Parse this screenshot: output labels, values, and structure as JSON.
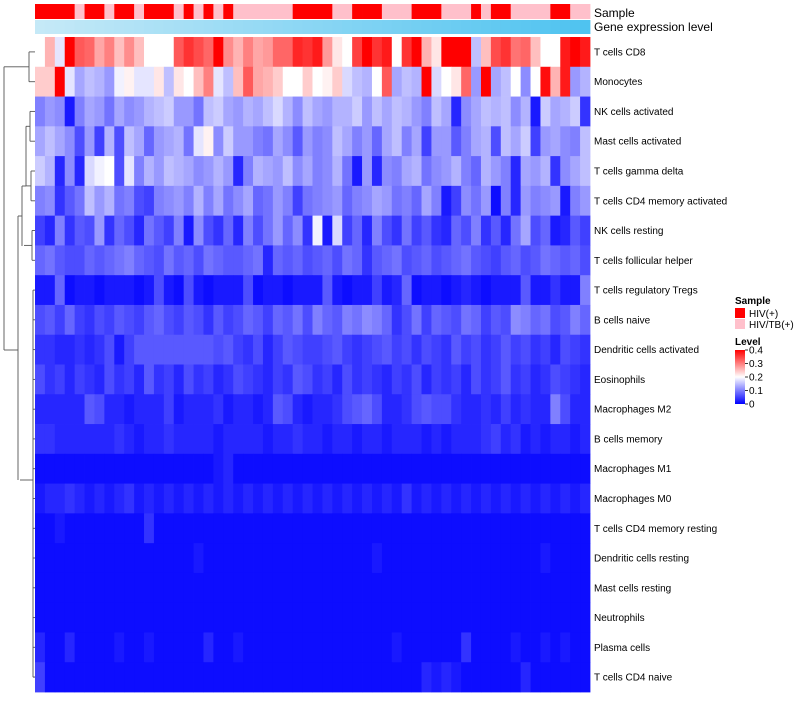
{
  "chart_data": {
    "type": "heatmap",
    "title": "",
    "annotation_labels": [
      "Sample",
      "Gene expression level"
    ],
    "rows": [
      "T cells CD8",
      "Monocytes",
      "NK cells activated",
      "Mast cells activated",
      "T cells gamma delta",
      "T cells CD4 memory activated",
      "NK cells resting",
      "T cells follicular helper",
      "T cells regulatory  Tregs",
      "B cells naive",
      "Dendritic cells activated",
      "Eosinophils",
      "Macrophages M2",
      "B cells memory",
      "Macrophages M1",
      "Macrophages M0",
      "T cells CD4 memory resting",
      "Dendritic cells resting",
      "Mast cells resting",
      "Neutrophils",
      "Plasma cells",
      "T cells CD4 naive"
    ],
    "n_columns": 56,
    "sample_groups": [
      0,
      0,
      0,
      0,
      1,
      0,
      0,
      1,
      0,
      0,
      1,
      0,
      0,
      0,
      1,
      0,
      1,
      0,
      1,
      0,
      1,
      1,
      1,
      1,
      1,
      1,
      0,
      0,
      0,
      0,
      1,
      1,
      0,
      0,
      0,
      1,
      1,
      1,
      0,
      0,
      0,
      1,
      1,
      1,
      0,
      1,
      0,
      0,
      1,
      1,
      1,
      1,
      0,
      0,
      1,
      1
    ],
    "values": [
      [
        0.2,
        0.26,
        0.18,
        0.4,
        0.33,
        0.32,
        0.27,
        0.3,
        0.25,
        0.29,
        0.25,
        0.2,
        0.2,
        0.2,
        0.33,
        0.36,
        0.34,
        0.32,
        0.4,
        0.29,
        0.26,
        0.3,
        0.27,
        0.28,
        0.32,
        0.32,
        0.37,
        0.36,
        0.38,
        0.28,
        0.22,
        0.2,
        0.35,
        0.4,
        0.36,
        0.38,
        0.2,
        0.36,
        0.4,
        0.26,
        0.22,
        0.4,
        0.4,
        0.4,
        0.15,
        0.25,
        0.34,
        0.36,
        0.31,
        0.32,
        0.25,
        0.2,
        0.2,
        0.38,
        0.42,
        0.38
      ],
      [
        0.24,
        0.24,
        0.42,
        0.18,
        0.13,
        0.15,
        0.14,
        0.12,
        0.19,
        0.21,
        0.18,
        0.18,
        0.22,
        0.15,
        0.22,
        0.2,
        0.25,
        0.3,
        0.18,
        0.15,
        0.25,
        0.33,
        0.27,
        0.26,
        0.24,
        0.2,
        0.2,
        0.24,
        0.2,
        0.21,
        0.24,
        0.17,
        0.15,
        0.14,
        0.2,
        0.33,
        0.13,
        0.15,
        0.14,
        0.4,
        0.17,
        0.2,
        0.22,
        0.32,
        0.12,
        0.43,
        0.13,
        0.15,
        0.2,
        0.11,
        0.2,
        0.39,
        0.26,
        0.38,
        0.12,
        0.14
      ],
      [
        0.1,
        0.12,
        0.11,
        0.02,
        0.1,
        0.13,
        0.12,
        0.09,
        0.13,
        0.11,
        0.12,
        0.14,
        0.15,
        0.16,
        0.12,
        0.12,
        0.09,
        0.15,
        0.16,
        0.13,
        0.12,
        0.14,
        0.13,
        0.15,
        0.17,
        0.14,
        0.11,
        0.15,
        0.13,
        0.12,
        0.14,
        0.14,
        0.16,
        0.12,
        0.15,
        0.13,
        0.15,
        0.14,
        0.12,
        0.1,
        0.15,
        0.13,
        0.03,
        0.11,
        0.13,
        0.15,
        0.14,
        0.15,
        0.11,
        0.14,
        0.02,
        0.16,
        0.13,
        0.14,
        0.16,
        0.04
      ],
      [
        0.13,
        0.15,
        0.13,
        0.11,
        0.06,
        0.12,
        0.05,
        0.14,
        0.06,
        0.15,
        0.13,
        0.08,
        0.12,
        0.13,
        0.14,
        0.09,
        0.18,
        0.21,
        0.11,
        0.16,
        0.12,
        0.12,
        0.1,
        0.09,
        0.13,
        0.11,
        0.07,
        0.12,
        0.1,
        0.11,
        0.15,
        0.13,
        0.1,
        0.12,
        0.08,
        0.13,
        0.15,
        0.1,
        0.13,
        0.05,
        0.12,
        0.12,
        0.07,
        0.1,
        0.13,
        0.14,
        0.06,
        0.15,
        0.13,
        0.16,
        0.05,
        0.12,
        0.13,
        0.11,
        0.1,
        0.15
      ],
      [
        0.16,
        0.14,
        0.03,
        0.11,
        0.03,
        0.17,
        0.19,
        0.2,
        0.06,
        0.18,
        0.1,
        0.14,
        0.12,
        0.15,
        0.14,
        0.13,
        0.11,
        0.12,
        0.14,
        0.12,
        0.03,
        0.1,
        0.14,
        0.13,
        0.12,
        0.15,
        0.11,
        0.13,
        0.1,
        0.11,
        0.14,
        0.09,
        0.02,
        0.12,
        0.03,
        0.11,
        0.1,
        0.13,
        0.14,
        0.09,
        0.11,
        0.12,
        0.14,
        0.1,
        0.08,
        0.14,
        0.12,
        0.1,
        0.03,
        0.13,
        0.12,
        0.14,
        0.04,
        0.11,
        0.13,
        0.15
      ],
      [
        0.1,
        0.11,
        0.04,
        0.07,
        0.09,
        0.15,
        0.12,
        0.14,
        0.09,
        0.1,
        0.06,
        0.05,
        0.1,
        0.11,
        0.12,
        0.1,
        0.14,
        0.1,
        0.13,
        0.09,
        0.11,
        0.13,
        0.08,
        0.09,
        0.12,
        0.1,
        0.05,
        0.09,
        0.1,
        0.11,
        0.12,
        0.08,
        0.1,
        0.11,
        0.13,
        0.12,
        0.09,
        0.1,
        0.08,
        0.13,
        0.1,
        0.02,
        0.05,
        0.11,
        0.09,
        0.12,
        0.01,
        0.1,
        0.03,
        0.12,
        0.1,
        0.11,
        0.12,
        0.02,
        0.1,
        0.12
      ],
      [
        0.05,
        0.03,
        0.1,
        0.04,
        0.07,
        0.06,
        0.12,
        0.04,
        0.08,
        0.06,
        0.03,
        0.09,
        0.07,
        0.05,
        0.1,
        0.02,
        0.11,
        0.06,
        0.04,
        0.08,
        0.03,
        0.1,
        0.06,
        0.09,
        0.12,
        0.08,
        0.11,
        0.04,
        0.19,
        0.02,
        0.17,
        0.05,
        0.08,
        0.03,
        0.1,
        0.06,
        0.04,
        0.09,
        0.05,
        0.07,
        0.04,
        0.03,
        0.08,
        0.06,
        0.1,
        0.04,
        0.07,
        0.03,
        0.09,
        0.13,
        0.06,
        0.08,
        0.02,
        0.03,
        0.07,
        0.05
      ],
      [
        0.08,
        0.09,
        0.07,
        0.06,
        0.06,
        0.08,
        0.07,
        0.08,
        0.09,
        0.1,
        0.08,
        0.07,
        0.06,
        0.09,
        0.07,
        0.08,
        0.06,
        0.09,
        0.08,
        0.07,
        0.07,
        0.08,
        0.09,
        0.03,
        0.08,
        0.07,
        0.08,
        0.06,
        0.07,
        0.08,
        0.06,
        0.09,
        0.08,
        0.04,
        0.07,
        0.08,
        0.09,
        0.06,
        0.07,
        0.08,
        0.06,
        0.07,
        0.08,
        0.09,
        0.07,
        0.06,
        0.05,
        0.07,
        0.08,
        0.06,
        0.07,
        0.09,
        0.08,
        0.07,
        0.08,
        0.06
      ],
      [
        0.02,
        0.02,
        0.08,
        0.01,
        0.02,
        0.02,
        0.01,
        0.02,
        0.02,
        0.02,
        0.01,
        0.02,
        0.06,
        0.02,
        0.01,
        0.06,
        0.02,
        0.01,
        0.02,
        0.02,
        0.02,
        0.06,
        0.01,
        0.02,
        0.02,
        0.01,
        0.02,
        0.02,
        0.02,
        0.07,
        0.02,
        0.01,
        0.02,
        0.02,
        0.05,
        0.02,
        0.03,
        0.08,
        0.01,
        0.02,
        0.02,
        0.01,
        0.02,
        0.03,
        0.02,
        0.01,
        0.02,
        0.02,
        0.02,
        0.07,
        0.02,
        0.02,
        0.04,
        0.02,
        0.02,
        0.1
      ],
      [
        0.06,
        0.07,
        0.05,
        0.08,
        0.05,
        0.04,
        0.06,
        0.05,
        0.07,
        0.06,
        0.05,
        0.07,
        0.08,
        0.06,
        0.05,
        0.07,
        0.06,
        0.04,
        0.07,
        0.05,
        0.06,
        0.08,
        0.07,
        0.05,
        0.08,
        0.07,
        0.09,
        0.06,
        0.1,
        0.08,
        0.07,
        0.1,
        0.09,
        0.11,
        0.1,
        0.08,
        0.04,
        0.06,
        0.09,
        0.05,
        0.08,
        0.07,
        0.06,
        0.09,
        0.08,
        0.05,
        0.07,
        0.06,
        0.11,
        0.1,
        0.08,
        0.09,
        0.06,
        0.07,
        0.1,
        0.08
      ],
      [
        0.04,
        0.04,
        0.03,
        0.03,
        0.04,
        0.03,
        0.04,
        0.06,
        0.02,
        0.05,
        0.07,
        0.07,
        0.07,
        0.07,
        0.07,
        0.07,
        0.07,
        0.07,
        0.06,
        0.07,
        0.05,
        0.04,
        0.06,
        0.03,
        0.05,
        0.07,
        0.06,
        0.05,
        0.05,
        0.06,
        0.07,
        0.05,
        0.04,
        0.05,
        0.06,
        0.07,
        0.05,
        0.06,
        0.04,
        0.06,
        0.05,
        0.04,
        0.07,
        0.05,
        0.06,
        0.04,
        0.05,
        0.07,
        0.05,
        0.06,
        0.04,
        0.05,
        0.03,
        0.06,
        0.05,
        0.04
      ],
      [
        0.06,
        0.04,
        0.05,
        0.03,
        0.05,
        0.04,
        0.03,
        0.06,
        0.04,
        0.05,
        0.03,
        0.07,
        0.04,
        0.05,
        0.03,
        0.06,
        0.04,
        0.05,
        0.03,
        0.04,
        0.06,
        0.05,
        0.04,
        0.03,
        0.05,
        0.04,
        0.07,
        0.06,
        0.04,
        0.05,
        0.03,
        0.06,
        0.04,
        0.05,
        0.04,
        0.03,
        0.05,
        0.04,
        0.06,
        0.03,
        0.05,
        0.04,
        0.05,
        0.03,
        0.06,
        0.04,
        0.05,
        0.07,
        0.04,
        0.05,
        0.03,
        0.04,
        0.06,
        0.05,
        0.04,
        0.03
      ],
      [
        0.03,
        0.03,
        0.03,
        0.03,
        0.03,
        0.07,
        0.06,
        0.03,
        0.03,
        0.02,
        0.03,
        0.03,
        0.03,
        0.05,
        0.02,
        0.03,
        0.03,
        0.03,
        0.04,
        0.02,
        0.03,
        0.03,
        0.02,
        0.03,
        0.07,
        0.06,
        0.03,
        0.02,
        0.03,
        0.03,
        0.04,
        0.06,
        0.07,
        0.08,
        0.06,
        0.03,
        0.03,
        0.04,
        0.06,
        0.07,
        0.06,
        0.06,
        0.04,
        0.03,
        0.03,
        0.04,
        0.03,
        0.05,
        0.03,
        0.04,
        0.03,
        0.03,
        0.1,
        0.06,
        0.03,
        0.03
      ],
      [
        0.04,
        0.04,
        0.03,
        0.03,
        0.03,
        0.03,
        0.03,
        0.03,
        0.04,
        0.03,
        0.02,
        0.03,
        0.03,
        0.04,
        0.03,
        0.03,
        0.03,
        0.03,
        0.02,
        0.03,
        0.03,
        0.03,
        0.03,
        0.02,
        0.03,
        0.03,
        0.04,
        0.03,
        0.03,
        0.02,
        0.03,
        0.03,
        0.02,
        0.03,
        0.03,
        0.02,
        0.03,
        0.03,
        0.03,
        0.02,
        0.03,
        0.02,
        0.03,
        0.03,
        0.03,
        0.04,
        0.05,
        0.03,
        0.04,
        0.02,
        0.03,
        0.02,
        0.03,
        0.03,
        0.02,
        0.03
      ],
      [
        0.01,
        0.01,
        0.01,
        0.01,
        0.01,
        0.01,
        0.01,
        0.01,
        0.01,
        0.01,
        0.01,
        0.01,
        0.01,
        0.01,
        0.01,
        0.01,
        0.01,
        0.01,
        0.02,
        0.03,
        0.01,
        0.01,
        0.01,
        0.01,
        0.01,
        0.01,
        0.01,
        0.01,
        0.01,
        0.01,
        0.01,
        0.01,
        0.01,
        0.01,
        0.01,
        0.01,
        0.01,
        0.01,
        0.01,
        0.01,
        0.01,
        0.01,
        0.01,
        0.01,
        0.01,
        0.01,
        0.01,
        0.01,
        0.01,
        0.01,
        0.01,
        0.01,
        0.01,
        0.01,
        0.01,
        0.01
      ],
      [
        0.02,
        0.03,
        0.03,
        0.04,
        0.03,
        0.02,
        0.03,
        0.02,
        0.03,
        0.04,
        0.02,
        0.03,
        0.02,
        0.03,
        0.02,
        0.03,
        0.02,
        0.03,
        0.02,
        0.03,
        0.02,
        0.03,
        0.02,
        0.03,
        0.02,
        0.03,
        0.02,
        0.03,
        0.02,
        0.03,
        0.02,
        0.03,
        0.02,
        0.03,
        0.02,
        0.03,
        0.02,
        0.04,
        0.02,
        0.03,
        0.02,
        0.03,
        0.02,
        0.03,
        0.02,
        0.03,
        0.02,
        0.03,
        0.02,
        0.03,
        0.02,
        0.03,
        0.02,
        0.03,
        0.02,
        0.03
      ],
      [
        0.01,
        0.01,
        0.02,
        0.01,
        0.01,
        0.01,
        0.01,
        0.01,
        0.01,
        0.01,
        0.01,
        0.04,
        0.01,
        0.01,
        0.01,
        0.01,
        0.01,
        0.01,
        0.01,
        0.01,
        0.01,
        0.01,
        0.01,
        0.01,
        0.01,
        0.01,
        0.01,
        0.01,
        0.01,
        0.01,
        0.01,
        0.01,
        0.01,
        0.01,
        0.01,
        0.01,
        0.01,
        0.01,
        0.01,
        0.01,
        0.01,
        0.01,
        0.01,
        0.01,
        0.01,
        0.01,
        0.01,
        0.01,
        0.01,
        0.01,
        0.01,
        0.01,
        0.01,
        0.01,
        0.01,
        0.01
      ],
      [
        0.01,
        0.01,
        0.01,
        0.01,
        0.01,
        0.01,
        0.01,
        0.01,
        0.01,
        0.01,
        0.01,
        0.01,
        0.01,
        0.01,
        0.01,
        0.01,
        0.02,
        0.01,
        0.01,
        0.01,
        0.01,
        0.01,
        0.01,
        0.01,
        0.01,
        0.01,
        0.01,
        0.01,
        0.01,
        0.01,
        0.01,
        0.01,
        0.01,
        0.01,
        0.02,
        0.01,
        0.01,
        0.01,
        0.01,
        0.01,
        0.01,
        0.01,
        0.01,
        0.01,
        0.01,
        0.01,
        0.01,
        0.01,
        0.01,
        0.01,
        0.01,
        0.02,
        0.01,
        0.01,
        0.01,
        0.01
      ],
      [
        0.01,
        0.01,
        0.01,
        0.01,
        0.01,
        0.01,
        0.01,
        0.01,
        0.01,
        0.01,
        0.01,
        0.01,
        0.01,
        0.01,
        0.01,
        0.01,
        0.01,
        0.01,
        0.01,
        0.01,
        0.01,
        0.01,
        0.01,
        0.01,
        0.01,
        0.01,
        0.01,
        0.01,
        0.01,
        0.01,
        0.01,
        0.01,
        0.01,
        0.01,
        0.01,
        0.01,
        0.01,
        0.01,
        0.01,
        0.01,
        0.01,
        0.01,
        0.01,
        0.01,
        0.01,
        0.01,
        0.01,
        0.01,
        0.01,
        0.01,
        0.01,
        0.01,
        0.01,
        0.01,
        0.01,
        0.01
      ],
      [
        0.01,
        0.01,
        0.01,
        0.01,
        0.01,
        0.01,
        0.01,
        0.01,
        0.01,
        0.01,
        0.01,
        0.01,
        0.01,
        0.01,
        0.01,
        0.01,
        0.01,
        0.01,
        0.01,
        0.01,
        0.01,
        0.01,
        0.01,
        0.01,
        0.01,
        0.01,
        0.01,
        0.01,
        0.01,
        0.01,
        0.01,
        0.01,
        0.01,
        0.01,
        0.01,
        0.01,
        0.01,
        0.01,
        0.01,
        0.01,
        0.01,
        0.01,
        0.01,
        0.01,
        0.01,
        0.01,
        0.01,
        0.01,
        0.01,
        0.01,
        0.01,
        0.01,
        0.01,
        0.01,
        0.01,
        0.01
      ],
      [
        0.03,
        0.01,
        0.01,
        0.03,
        0.01,
        0.01,
        0.01,
        0.01,
        0.02,
        0.01,
        0.01,
        0.02,
        0.01,
        0.01,
        0.01,
        0.01,
        0.01,
        0.03,
        0.01,
        0.01,
        0.02,
        0.01,
        0.01,
        0.01,
        0.01,
        0.01,
        0.01,
        0.01,
        0.01,
        0.01,
        0.01,
        0.01,
        0.01,
        0.01,
        0.01,
        0.01,
        0.02,
        0.01,
        0.01,
        0.01,
        0.01,
        0.01,
        0.01,
        0.04,
        0.01,
        0.01,
        0.01,
        0.01,
        0.02,
        0.01,
        0.01,
        0.02,
        0.01,
        0.02,
        0.01,
        0.01
      ],
      [
        0.05,
        0.01,
        0.01,
        0.01,
        0.01,
        0.01,
        0.01,
        0.01,
        0.01,
        0.01,
        0.01,
        0.01,
        0.01,
        0.01,
        0.01,
        0.01,
        0.01,
        0.01,
        0.01,
        0.01,
        0.01,
        0.01,
        0.01,
        0.01,
        0.01,
        0.01,
        0.01,
        0.01,
        0.01,
        0.01,
        0.01,
        0.01,
        0.01,
        0.01,
        0.01,
        0.01,
        0.01,
        0.01,
        0.01,
        0.03,
        0.02,
        0.03,
        0.02,
        0.01,
        0.01,
        0.01,
        0.01,
        0.01,
        0.01,
        0.03,
        0.01,
        0.01,
        0.01,
        0.01,
        0.01,
        0.01
      ]
    ],
    "legend_sample": {
      "title": "Sample",
      "entries": [
        "HIV(+)",
        "HIV/TB(+)"
      ],
      "colors": [
        "#ff0000",
        "#ffc0cb"
      ],
      "placement": "right"
    },
    "legend_level": {
      "title": "Level",
      "ticks": [
        0.4,
        0.3,
        0.2,
        0.1,
        0
      ],
      "tick_labels": [
        "0.4",
        "0.3",
        "0.2",
        "0.1",
        "0"
      ],
      "range": [
        0,
        0.4
      ],
      "colors": [
        "#0000ff",
        "#ffffff",
        "#ff0000"
      ],
      "placement": "right"
    },
    "gene_expression_gradient": [
      "#c5e9f7",
      "#4fc3f0"
    ]
  }
}
